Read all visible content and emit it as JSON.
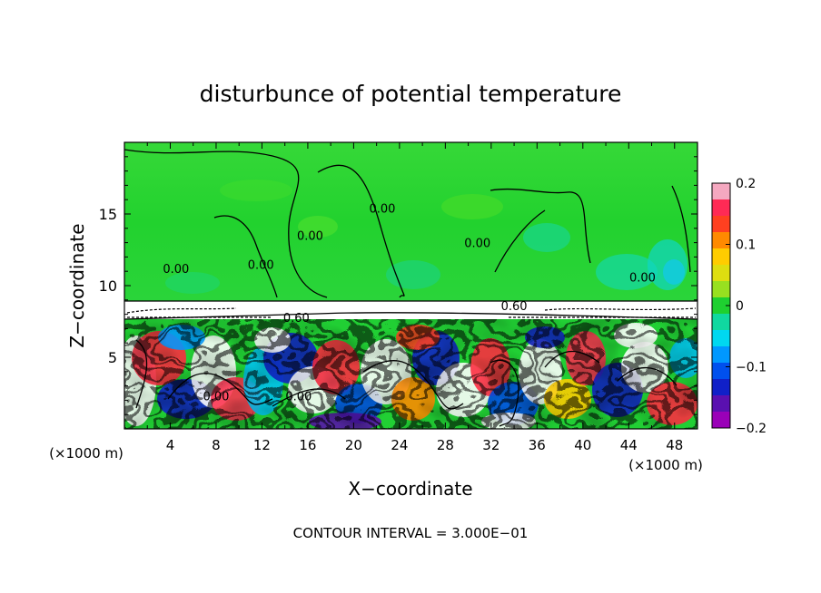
{
  "chart_data": {
    "type": "heatmap",
    "title": "disturbunce of potential temperature",
    "xlabel": "X−coordinate",
    "ylabel": "Z−coordinate",
    "x_units_left": "(×1000 m)",
    "x_units_right": "(×1000 m)",
    "xlim": [
      0,
      50
    ],
    "ylim": [
      0,
      20
    ],
    "x_ticks": [
      4,
      8,
      12,
      16,
      20,
      24,
      28,
      32,
      36,
      40,
      44,
      48
    ],
    "y_ticks": [
      5,
      10,
      15
    ],
    "contour_labels": [
      {
        "text": "0.00",
        "x": 4.5,
        "z": 11.2
      },
      {
        "text": "0.00",
        "x": 11.9,
        "z": 11.5
      },
      {
        "text": "0.00",
        "x": 16.2,
        "z": 13.5
      },
      {
        "text": "0.00",
        "x": 22.5,
        "z": 15.4
      },
      {
        "text": "0.00",
        "x": 30.8,
        "z": 13.0
      },
      {
        "text": "0.00",
        "x": 45.2,
        "z": 10.6
      },
      {
        "text": "0.60",
        "x": 15.0,
        "z": 7.8
      },
      {
        "text": "0.60",
        "x": 34.0,
        "z": 8.6
      },
      {
        "text": "0.00",
        "x": 8.0,
        "z": 2.3
      },
      {
        "text": "0.00",
        "x": 15.2,
        "z": 2.3
      }
    ],
    "colorbar": {
      "min": -0.2,
      "max": 0.2,
      "tick_values": [
        0.2,
        0.1,
        0,
        -0.1,
        -0.2
      ],
      "tick_labels": [
        "0.2",
        "0.1",
        "0",
        "−0.1",
        "−0.2"
      ],
      "colors": [
        "#f5a8c0",
        "#ff2a55",
        "#ff4020",
        "#ff8a00",
        "#ffcc00",
        "#dede10",
        "#98e020",
        "#1ed030",
        "#10d8a0",
        "#00d8f0",
        "#0098ff",
        "#0050ee",
        "#1020c8",
        "#5a10b0",
        "#9a00b8"
      ]
    },
    "footer": "CONTOUR INTERVAL = 3.000E−01"
  }
}
